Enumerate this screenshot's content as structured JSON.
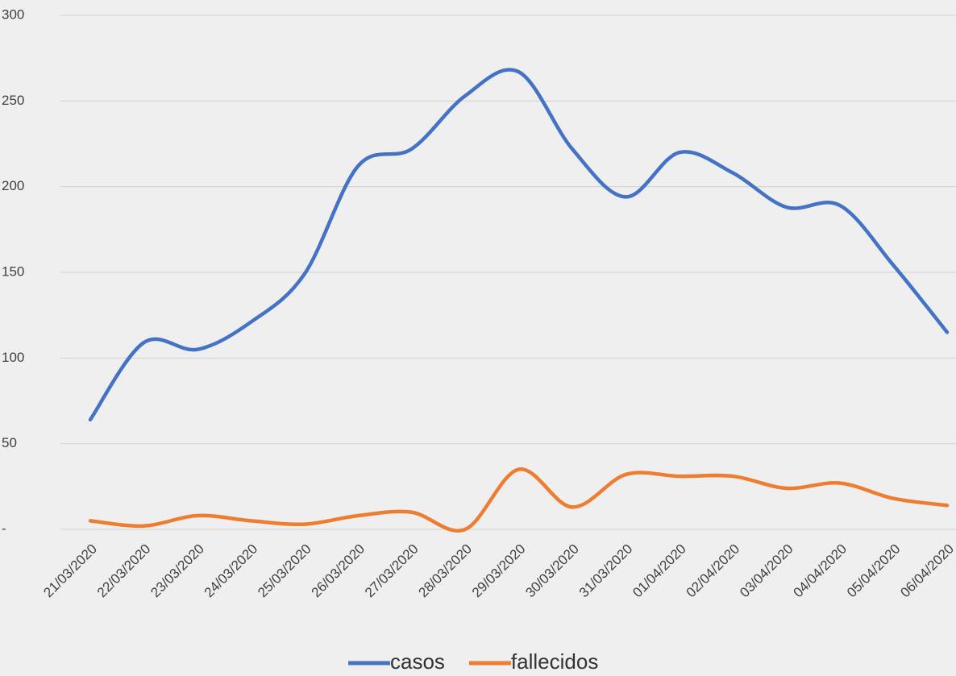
{
  "chart_data": {
    "type": "line",
    "categories": [
      "21/03/2020",
      "22/03/2020",
      "23/03/2020",
      "24/03/2020",
      "25/03/2020",
      "26/03/2020",
      "27/03/2020",
      "28/03/2020",
      "29/03/2020",
      "30/03/2020",
      "31/03/2020",
      "01/04/2020",
      "02/04/2020",
      "03/04/2020",
      "04/04/2020",
      "05/04/2020",
      "06/04/2020"
    ],
    "series": [
      {
        "name": "casos",
        "color": "#4472c4",
        "values": [
          64,
          109,
          105,
          121,
          149,
          212,
          222,
          253,
          267,
          222,
          194,
          220,
          208,
          188,
          189,
          154,
          115
        ]
      },
      {
        "name": "fallecidos",
        "color": "#ed7d31",
        "values": [
          5,
          2,
          8,
          5,
          3,
          8,
          10,
          0,
          35,
          13,
          32,
          31,
          31,
          24,
          27,
          18,
          14
        ]
      }
    ],
    "ylim": [
      0,
      300
    ],
    "yticks": [
      {
        "value": 0,
        "label": "-"
      },
      50,
      100,
      150,
      200,
      250,
      300
    ],
    "grid": true,
    "smooth": true,
    "legend": "bottom"
  }
}
